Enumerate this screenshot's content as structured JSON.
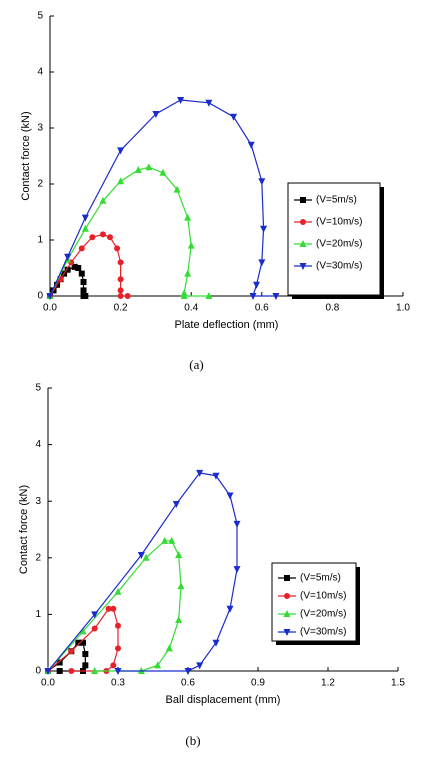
{
  "chart_data": [
    {
      "type": "line",
      "caption": "(a)",
      "x_label": "Plate deflection (mm)",
      "y_label": "Contact force (kN)",
      "xlim": [
        0,
        1.0
      ],
      "ylim": [
        0,
        5
      ],
      "xticks": [
        {
          "value": 0,
          "label": "0.0"
        },
        0.2,
        0.4,
        0.6,
        0.8,
        {
          "value": 1.0,
          "label": "1.0"
        }
      ],
      "yticks": [
        0,
        1,
        2,
        3,
        4,
        5
      ],
      "series": [
        {
          "name": "(V=5m/s)",
          "color": "#000000",
          "marker": "square",
          "x": [
            0,
            0.01,
            0.02,
            0.03,
            0.04,
            0.05,
            0.07,
            0.08,
            0.09,
            0.095,
            0.095,
            0.095,
            0.1
          ],
          "values": [
            0,
            0.1,
            0.2,
            0.3,
            0.4,
            0.47,
            0.52,
            0.5,
            0.4,
            0.25,
            0.1,
            0,
            0
          ]
        },
        {
          "name": "(V=10m/s)",
          "color": "#e8202a",
          "marker": "circle",
          "x": [
            0,
            0.03,
            0.06,
            0.09,
            0.12,
            0.15,
            0.17,
            0.19,
            0.2,
            0.2,
            0.2,
            0.2,
            0.22
          ],
          "values": [
            0,
            0.3,
            0.6,
            0.85,
            1.05,
            1.1,
            1.05,
            0.85,
            0.6,
            0.3,
            0.1,
            0,
            0
          ]
        },
        {
          "name": "(V=20m/s)",
          "color": "#33dd33",
          "marker": "triangle-up",
          "x": [
            0,
            0.05,
            0.1,
            0.15,
            0.2,
            0.25,
            0.28,
            0.32,
            0.36,
            0.39,
            0.4,
            0.39,
            0.38,
            0.38,
            0.45
          ],
          "values": [
            0,
            0.65,
            1.2,
            1.7,
            2.05,
            2.25,
            2.3,
            2.2,
            1.9,
            1.4,
            0.9,
            0.4,
            0.05,
            0,
            0
          ]
        },
        {
          "name": "(V=30m/s)",
          "color": "#1a2ccc",
          "marker": "triangle-down",
          "x": [
            0,
            0.05,
            0.1,
            0.2,
            0.3,
            0.37,
            0.45,
            0.52,
            0.57,
            0.6,
            0.605,
            0.6,
            0.585,
            0.575,
            0.64
          ],
          "values": [
            0,
            0.7,
            1.4,
            2.6,
            3.25,
            3.5,
            3.45,
            3.2,
            2.7,
            2.05,
            1.2,
            0.6,
            0.2,
            0,
            0
          ]
        }
      ]
    },
    {
      "type": "line",
      "caption": "(b)",
      "x_label": "Ball displacement (mm)",
      "y_label": "Contact force (kN)",
      "xlim": [
        0,
        1.5
      ],
      "ylim": [
        0,
        5
      ],
      "xticks": [
        {
          "value": 0,
          "label": "0.0"
        },
        0.3,
        0.6,
        0.9,
        1.2,
        1.5
      ],
      "yticks": [
        0,
        1,
        2,
        3,
        4,
        5
      ],
      "series": [
        {
          "name": "(V=5m/s)",
          "color": "#000000",
          "marker": "square",
          "x": [
            0,
            0.05,
            0.1,
            0.13,
            0.15,
            0.16,
            0.16,
            0.15,
            0.05
          ],
          "values": [
            0,
            0.15,
            0.35,
            0.5,
            0.5,
            0.3,
            0.1,
            0,
            0
          ]
        },
        {
          "name": "(V=10m/s)",
          "color": "#e8202a",
          "marker": "circle",
          "x": [
            0,
            0.1,
            0.2,
            0.26,
            0.28,
            0.3,
            0.3,
            0.28,
            0.25,
            0.1
          ],
          "values": [
            0,
            0.35,
            0.75,
            1.1,
            1.1,
            0.8,
            0.4,
            0.1,
            0,
            0
          ]
        },
        {
          "name": "(V=20m/s)",
          "color": "#33dd33",
          "marker": "triangle-up",
          "x": [
            0,
            0.15,
            0.3,
            0.42,
            0.5,
            0.53,
            0.56,
            0.57,
            0.56,
            0.52,
            0.47,
            0.4,
            0.2
          ],
          "values": [
            0,
            0.7,
            1.4,
            2.0,
            2.3,
            2.3,
            2.05,
            1.5,
            0.9,
            0.4,
            0.1,
            0,
            0
          ]
        },
        {
          "name": "(V=30m/s)",
          "color": "#1a2ccc",
          "marker": "triangle-down",
          "x": [
            0,
            0.2,
            0.4,
            0.55,
            0.65,
            0.72,
            0.78,
            0.81,
            0.81,
            0.78,
            0.72,
            0.65,
            0.6,
            0.3
          ],
          "values": [
            0,
            1.0,
            2.05,
            2.95,
            3.5,
            3.45,
            3.1,
            2.6,
            1.8,
            1.1,
            0.5,
            0.1,
            0,
            0
          ]
        }
      ]
    }
  ]
}
